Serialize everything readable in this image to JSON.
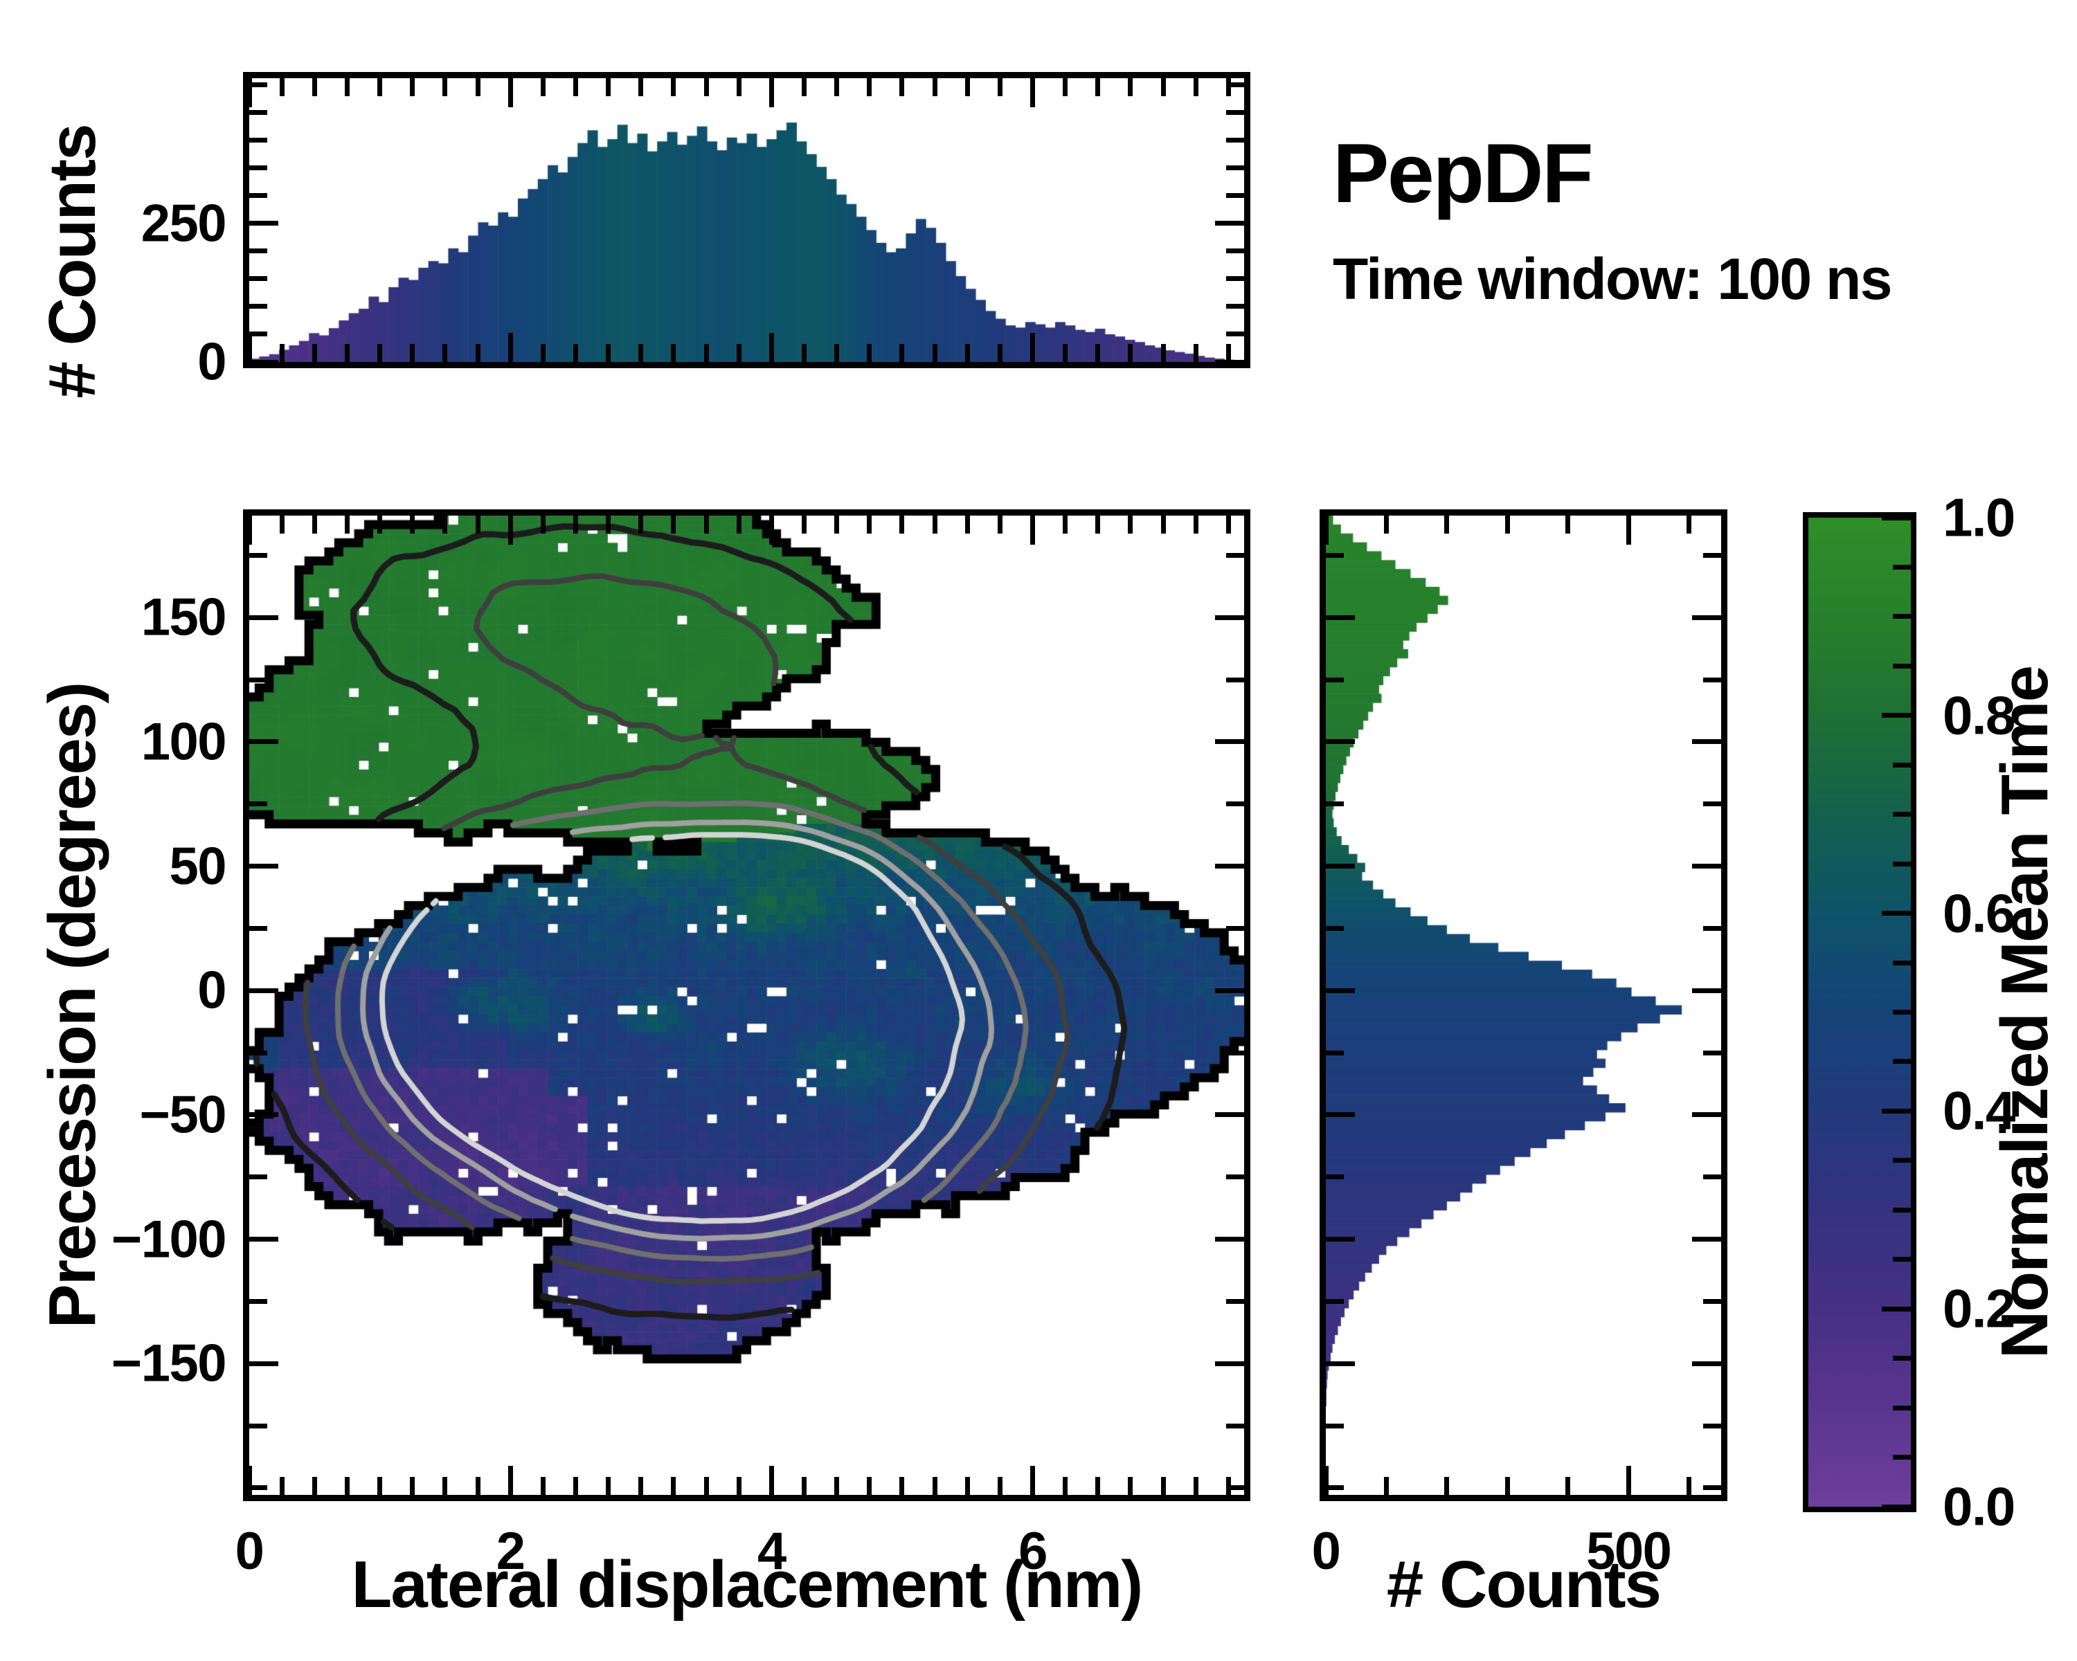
{
  "header": {
    "title": "PepDF",
    "subtitle": "Time window: 100 ns"
  },
  "colors": {
    "background": "#ffffff",
    "axis": "#000000",
    "colormap_stops": [
      [
        0.0,
        "#6e3e9c"
      ],
      [
        0.1,
        "#5a3590"
      ],
      [
        0.2,
        "#463083"
      ],
      [
        0.3,
        "#34337f"
      ],
      [
        0.4,
        "#23397c"
      ],
      [
        0.5,
        "#154378"
      ],
      [
        0.6,
        "#0e5369"
      ],
      [
        0.7,
        "#14614e"
      ],
      [
        0.8,
        "#1f7034"
      ],
      [
        0.9,
        "#27802c"
      ],
      [
        1.0,
        "#2e8f27"
      ]
    ],
    "contour_levels": [
      {
        "v": 0.18,
        "color": "#1c1c1c",
        "lw": 9
      },
      {
        "v": 0.36,
        "color": "#3f3f3f",
        "lw": 8
      },
      {
        "v": 0.52,
        "color": "#6f6f6f",
        "lw": 8
      },
      {
        "v": 0.68,
        "color": "#a0a0a0",
        "lw": 8
      },
      {
        "v": 0.82,
        "color": "#d4d4d4",
        "lw": 8
      }
    ],
    "outer_contour": {
      "color": "#000000",
      "lw": 13
    }
  },
  "axes": {
    "x": {
      "label": "Lateral displacement (nm)",
      "range": [
        0,
        7.62
      ],
      "major_ticks": [
        0,
        2,
        4,
        6
      ],
      "major_tick_labels": [
        "0",
        "2",
        "4",
        "6"
      ],
      "minor_step": 0.25
    },
    "y": {
      "label": "Precession (degrees)",
      "range": [
        -202.8,
        191
      ],
      "major_ticks": [
        150,
        100,
        50,
        0,
        -50,
        -100,
        -150
      ],
      "major_tick_labels": [
        "150",
        "100",
        "50",
        "0",
        "−50",
        "−100",
        "−150"
      ],
      "minor_step": 25
    },
    "top_hist_y": {
      "label": "# Counts",
      "range": [
        0,
        512
      ],
      "major_ticks": [
        0,
        250
      ],
      "major_tick_labels": [
        "0",
        "250"
      ],
      "minor_step": 50
    },
    "right_hist_x": {
      "label": "# Counts",
      "range": [
        0,
        653
      ],
      "major_ticks": [
        0,
        500
      ],
      "major_tick_labels": [
        "0",
        "500"
      ],
      "minor_step": 100
    },
    "colorbar": {
      "label": "Normalized Mean Time",
      "range": [
        0,
        1
      ],
      "major_ticks": [
        1.0,
        0.8,
        0.6,
        0.4,
        0.2,
        0.0
      ],
      "major_tick_labels": [
        "1.0",
        "0.8",
        "0.6",
        "0.4",
        "0.2",
        "0.0"
      ],
      "minor_step": 0.05
    }
  },
  "chart_data": [
    {
      "type": "bar",
      "name": "top_marginal_histogram",
      "xlabel": "Lateral displacement (nm)",
      "ylabel": "# Counts",
      "x_range": [
        0,
        7.62
      ],
      "ylim": [
        0,
        512
      ],
      "n_bins": 100,
      "values": [
        6,
        10,
        14,
        22,
        30,
        38,
        52,
        48,
        61,
        75,
        88,
        96,
        118,
        108,
        135,
        152,
        148,
        170,
        182,
        178,
        205,
        198,
        228,
        252,
        246,
        270,
        262,
        295,
        312,
        330,
        355,
        342,
        370,
        395,
        418,
        388,
        402,
        428,
        395,
        412,
        380,
        398,
        415,
        392,
        408,
        425,
        398,
        382,
        405,
        395,
        412,
        388,
        402,
        418,
        432,
        398,
        375,
        352,
        330,
        302,
        285,
        262,
        238,
        215,
        198,
        205,
        232,
        258,
        242,
        215,
        182,
        155,
        132,
        112,
        92,
        78,
        66,
        62,
        72,
        68,
        62,
        72,
        66,
        58,
        54,
        60,
        50,
        46,
        40,
        36,
        30,
        26,
        21,
        18,
        15,
        11,
        8,
        6,
        4,
        2
      ],
      "bar_color_by_mean_time_anchors": [
        [
          0,
          0.13
        ],
        [
          0.5,
          0.19
        ],
        [
          1,
          0.28
        ],
        [
          1.5,
          0.4
        ],
        [
          2,
          0.5
        ],
        [
          2.4,
          0.56
        ],
        [
          2.8,
          0.62
        ],
        [
          3.2,
          0.6
        ],
        [
          3.6,
          0.57
        ],
        [
          4,
          0.6
        ],
        [
          4.4,
          0.62
        ],
        [
          4.8,
          0.52
        ],
        [
          5.2,
          0.47
        ],
        [
          5.6,
          0.44
        ],
        [
          6,
          0.36
        ],
        [
          6.4,
          0.3
        ],
        [
          6.8,
          0.25
        ],
        [
          7.2,
          0.2
        ],
        [
          7.65,
          0.16
        ]
      ]
    },
    {
      "type": "heatmap",
      "name": "main_2d_histogram",
      "xlabel": "Lateral displacement (nm)",
      "ylabel": "Precession (degrees)",
      "color_label": "Normalized Mean Time",
      "x_range": [
        0,
        7.62
      ],
      "y_range": [
        -202.8,
        191
      ],
      "nx": 100,
      "ny": 108,
      "seed": 11,
      "boundary_noise": 0.55,
      "speckle_fraction": 0.028,
      "green_blobs": [
        {
          "cx": 2.5,
          "cy": 150,
          "rx": 2.2,
          "ry": 48
        },
        {
          "cx": 1.6,
          "cy": 105,
          "rx": 1.7,
          "ry": 42
        },
        {
          "cx": 0.6,
          "cy": 88,
          "rx": 0.75,
          "ry": 22
        },
        {
          "cx": 3.3,
          "cy": 80,
          "rx": 1.5,
          "ry": 22
        },
        {
          "cx": 4.0,
          "cy": 85,
          "rx": 1.2,
          "ry": 20
        }
      ],
      "blue_blobs": [
        {
          "cx": 3.7,
          "cy": -20,
          "rx": 3.3,
          "ry": 78
        },
        {
          "cx": 1.6,
          "cy": -35,
          "rx": 1.55,
          "ry": 65
        },
        {
          "cx": 6.2,
          "cy": -5,
          "rx": 1.5,
          "ry": 48
        },
        {
          "cx": 3.3,
          "cy": -115,
          "rx": 1.1,
          "ry": 32
        },
        {
          "cx": 4.6,
          "cy": 35,
          "rx": 1.8,
          "ry": 32
        }
      ],
      "green_mean_time": 0.86,
      "blue_mean_time_anchors": [
        [
          75,
          0.74
        ],
        [
          58,
          0.66
        ],
        [
          45,
          0.58
        ],
        [
          25,
          0.52
        ],
        [
          5,
          0.48
        ],
        [
          -20,
          0.45
        ],
        [
          -45,
          0.42
        ],
        [
          -70,
          0.37
        ],
        [
          -95,
          0.31
        ],
        [
          -120,
          0.3
        ],
        [
          -150,
          0.28
        ],
        [
          -203,
          0.26
        ]
      ],
      "teal_patches": [
        {
          "x": 4.05,
          "y": 35,
          "rx": 0.55,
          "ry": 18,
          "t": 0.68
        },
        {
          "x": 1.95,
          "y": -5,
          "rx": 0.5,
          "ry": 16,
          "t": 0.6
        },
        {
          "x": 3.1,
          "y": -10,
          "rx": 0.35,
          "ry": 12,
          "t": 0.62
        },
        {
          "x": 4.6,
          "y": -30,
          "rx": 0.6,
          "ry": 20,
          "t": 0.58
        },
        {
          "x": 5.9,
          "y": -38,
          "rx": 0.5,
          "ry": 16,
          "t": 0.55
        },
        {
          "x": 3.5,
          "y": 55,
          "rx": 1.2,
          "ry": 14,
          "t": 0.66
        }
      ],
      "purple_zones": [
        {
          "x": [
            0,
            2.3
          ],
          "y": [
            -110,
            -30
          ],
          "t": 0.25
        },
        {
          "x": [
            0,
            2.6
          ],
          "y": [
            -78,
            -42
          ],
          "t": 0.23
        },
        {
          "x": [
            2.6,
            4.8
          ],
          "y": [
            -115,
            -78
          ],
          "t": 0.27
        },
        {
          "x": [
            0.2,
            2.0
          ],
          "y": [
            -30,
            8
          ],
          "t": 0.36
        },
        {
          "x": [
            2.7,
            4.0
          ],
          "y": [
            -152,
            -115
          ],
          "t": 0.3
        }
      ],
      "density_gaussians": [
        {
          "x": 2.0,
          "y": -5,
          "sx": 1.0,
          "sy": 42,
          "a": 1.0
        },
        {
          "x": 4.05,
          "y": 33,
          "sx": 0.75,
          "sy": 26,
          "a": 0.95
        },
        {
          "x": 3.3,
          "y": -40,
          "sx": 1.3,
          "sy": 45,
          "a": 0.8
        },
        {
          "x": 5.0,
          "y": -10,
          "sx": 1.0,
          "sy": 40,
          "a": 0.65
        },
        {
          "x": 2.6,
          "y": 25,
          "sx": 0.8,
          "sy": 30,
          "a": 0.7
        },
        {
          "x": 3.8,
          "y": -75,
          "sx": 1.2,
          "sy": 30,
          "a": 0.45
        },
        {
          "x": 2.2,
          "y": 150,
          "sx": 1.2,
          "sy": 28,
          "a": 0.35
        },
        {
          "x": 3.6,
          "y": 120,
          "sx": 1.0,
          "sy": 35,
          "a": 0.3
        }
      ]
    },
    {
      "type": "bar",
      "name": "right_marginal_histogram",
      "xlabel": "# Counts",
      "ylabel": "Precession (degrees)",
      "y_range": [
        -202.8,
        191
      ],
      "xlim": [
        0,
        653
      ],
      "n_bins": 110,
      "values": [
        12,
        25,
        45,
        68,
        92,
        115,
        140,
        165,
        188,
        202,
        185,
        168,
        150,
        138,
        128,
        136,
        118,
        106,
        95,
        88,
        92,
        78,
        70,
        62,
        54,
        46,
        40,
        34,
        29,
        24,
        20,
        16,
        13,
        11,
        13,
        18,
        26,
        38,
        52,
        65,
        60,
        78,
        95,
        115,
        140,
        168,
        200,
        238,
        285,
        335,
        390,
        440,
        480,
        505,
        545,
        588,
        552,
        515,
        488,
        465,
        448,
        462,
        442,
        425,
        448,
        468,
        495,
        462,
        428,
        395,
        365,
        338,
        312,
        288,
        265,
        242,
        222,
        200,
        178,
        158,
        138,
        118,
        100,
        88,
        76,
        65,
        55,
        46,
        38,
        31,
        25,
        20,
        15,
        11,
        8,
        5,
        3,
        2,
        1,
        1,
        0,
        0,
        0,
        0,
        0,
        0,
        0,
        0,
        0,
        0
      ],
      "bar_color_by_mean_time_anchors": [
        [
          191,
          0.92
        ],
        [
          150,
          0.9
        ],
        [
          110,
          0.86
        ],
        [
          85,
          0.82
        ],
        [
          70,
          0.75
        ],
        [
          55,
          0.68
        ],
        [
          40,
          0.62
        ],
        [
          25,
          0.56
        ],
        [
          10,
          0.51
        ],
        [
          0,
          0.49
        ],
        [
          -15,
          0.46
        ],
        [
          -35,
          0.44
        ],
        [
          -55,
          0.41
        ],
        [
          -75,
          0.37
        ],
        [
          -95,
          0.32
        ],
        [
          -115,
          0.28
        ],
        [
          -135,
          0.24
        ],
        [
          -155,
          0.21
        ],
        [
          -203,
          0.18
        ]
      ]
    }
  ]
}
